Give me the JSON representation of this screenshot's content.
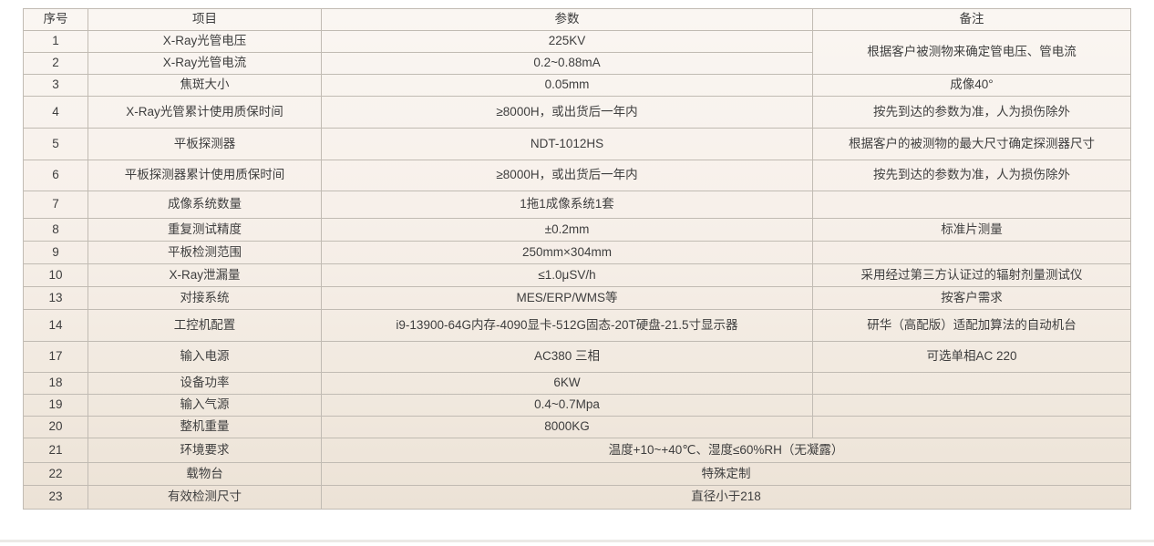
{
  "table": {
    "headers": {
      "no": "序号",
      "item": "项目",
      "param": "参数",
      "remark": "备注"
    },
    "rows": [
      {
        "no": "1",
        "item": "X-Ray光管电压",
        "param": "225KV",
        "remark": "根据客户被测物来确定管电压、管电流"
      },
      {
        "no": "2",
        "item": "X-Ray光管电流",
        "param": "0.2~0.88mA"
      },
      {
        "no": "3",
        "item": "焦斑大小",
        "param": "0.05mm",
        "remark": "成像40°"
      },
      {
        "no": "4",
        "item": "X-Ray光管累计使用质保时间",
        "param": "≥8000H，或出货后一年内",
        "remark": "按先到达的参数为准，人为损伤除外"
      },
      {
        "no": "5",
        "item": "平板探测器",
        "param": "NDT-1012HS",
        "remark": "根据客户的被测物的最大尺寸确定探测器尺寸"
      },
      {
        "no": "6",
        "item": "平板探测器累计使用质保时间",
        "param": "≥8000H，或出货后一年内",
        "remark": "按先到达的参数为准，人为损伤除外"
      },
      {
        "no": "7",
        "item": "成像系统数量",
        "param": "1拖1成像系统1套",
        "remark": ""
      },
      {
        "no": "8",
        "item": "重复测试精度",
        "param": "±0.2mm",
        "remark": "标准片测量"
      },
      {
        "no": "9",
        "item": "平板检测范围",
        "param": "250mm×304mm",
        "remark": ""
      },
      {
        "no": "10",
        "item": "X-Ray泄漏量",
        "param": "≤1.0μSV/h",
        "remark": "采用经过第三方认证过的辐射剂量测试仪"
      },
      {
        "no": "13",
        "item": "对接系统",
        "param": "MES/ERP/WMS等",
        "remark": "按客户需求"
      },
      {
        "no": "14",
        "item": "工控机配置",
        "param": "i9-13900-64G内存-4090显卡-512G固态-20T硬盘-21.5寸显示器",
        "remark": "研华（高配版）适配加算法的自动机台"
      },
      {
        "no": "17",
        "item": "输入电源",
        "param": "AC380 三相",
        "remark": "可选单相AC 220"
      },
      {
        "no": "18",
        "item": "设备功率",
        "param": "6KW",
        "remark": ""
      },
      {
        "no": "19",
        "item": "输入气源",
        "param": "0.4~0.7Mpa",
        "remark": ""
      },
      {
        "no": "20",
        "item": "整机重量",
        "param": "8000KG",
        "remark": ""
      },
      {
        "no": "21",
        "item": "环境要求",
        "param": "温度+10~+40℃、湿度≤60%RH（无凝露）"
      },
      {
        "no": "22",
        "item": "载物台",
        "param": "特殊定制"
      },
      {
        "no": "23",
        "item": "有效检测尺寸",
        "param": "直径小于218"
      }
    ],
    "colors": {
      "border": "#c1bbb3",
      "text": "#3e3e3e",
      "background_top": "#faf6f2",
      "background_bottom": "#ece2d6"
    }
  }
}
